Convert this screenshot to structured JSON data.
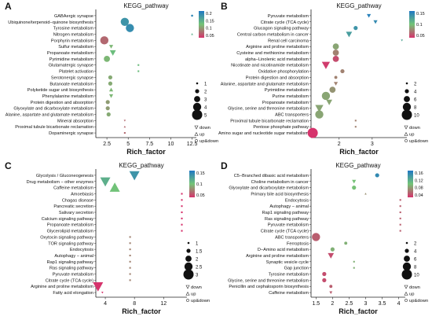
{
  "panel_letters": [
    "A",
    "B",
    "C",
    "D"
  ],
  "legend_text": {
    "down": "down",
    "up": "up",
    "updown": "up&down"
  },
  "colors": {
    "low": "#1f78c4",
    "mid": "#74c476",
    "high": "#d6336c"
  },
  "chart_data": [
    {
      "type": "scatter",
      "panel": "A",
      "title": "KEGG_pathway",
      "xlabel": "Rich_factor",
      "ylabel": "",
      "xlim": [
        1.2,
        13.0
      ],
      "xticks": [
        2.5,
        5.0,
        7.5,
        10.0,
        12.5
      ],
      "colorbar": {
        "ticks": [
          0.2,
          0.15,
          0.1,
          0.05
        ]
      },
      "size_legend": [
        1,
        2,
        3,
        4,
        5
      ],
      "categories": [
        "GABAergic synapse",
        "Ubiquinone/terpenoid−quinone biosynthesis",
        "Tyrosine metabolism",
        "Nitrogen metabolism",
        "Porphyrin metabolism",
        "Sulfur metabolism",
        "Propanoate metabolism",
        "Pyrimidine metabolism",
        "Glutamatergic synapse",
        "Platelet activation",
        "Serotonergic synapse",
        "Butanoate metabolism",
        "Polyketide sugar unit biosynthesis",
        "Phenylalanine metabolism",
        "Protein digestion and absorption",
        "Glyoxylate and dicarboxylate metabolism",
        "Alanine, aspartate and glutamate metabolism",
        "Mineral absorption",
        "Proximal tubule bicarbonate reclamation",
        "Dopaminergic synapse"
      ],
      "points": [
        {
          "x": 12.5,
          "size": 1,
          "q": 0.02,
          "shape": "circle"
        },
        {
          "x": 4.6,
          "size": 4,
          "q": 0.04,
          "shape": "circle"
        },
        {
          "x": 5.2,
          "size": 4,
          "q": 0.03,
          "shape": "circle"
        },
        {
          "x": 12.5,
          "size": 1,
          "q": 0.08,
          "shape": "up"
        },
        {
          "x": 2.2,
          "size": 4,
          "q": 0.18,
          "shape": "circle"
        },
        {
          "x": 3.0,
          "size": 2,
          "q": 0.12,
          "shape": "down"
        },
        {
          "x": 3.2,
          "size": 3,
          "q": 0.1,
          "shape": "down"
        },
        {
          "x": 2.5,
          "size": 3,
          "q": 0.12,
          "shape": "circle"
        },
        {
          "x": 6.2,
          "size": 1,
          "q": 0.1,
          "shape": "updown"
        },
        {
          "x": 6.2,
          "size": 1,
          "q": 0.1,
          "shape": "updown"
        },
        {
          "x": 2.9,
          "size": 2,
          "q": 0.13,
          "shape": "circle"
        },
        {
          "x": 2.9,
          "size": 2,
          "q": 0.13,
          "shape": "circle"
        },
        {
          "x": 3.0,
          "size": 2,
          "q": 0.12,
          "shape": "up"
        },
        {
          "x": 3.0,
          "size": 2,
          "q": 0.12,
          "shape": "down"
        },
        {
          "x": 2.6,
          "size": 2,
          "q": 0.14,
          "shape": "circle"
        },
        {
          "x": 2.6,
          "size": 2,
          "q": 0.14,
          "shape": "circle"
        },
        {
          "x": 2.7,
          "size": 2,
          "q": 0.13,
          "shape": "circle"
        },
        {
          "x": 4.6,
          "size": 1,
          "q": 0.18,
          "shape": "down"
        },
        {
          "x": 4.6,
          "size": 1,
          "q": 0.18,
          "shape": "up"
        },
        {
          "x": 4.6,
          "size": 1,
          "q": 0.18,
          "shape": "updown"
        }
      ]
    },
    {
      "type": "scatter",
      "panel": "B",
      "title": "KEGG_pathway",
      "xlabel": "Rich_factor",
      "ylabel": "",
      "xlim": [
        1.15,
        4.05
      ],
      "xticks": [
        2,
        3
      ],
      "colorbar": {
        "ticks": [
          0.15,
          0.1,
          0.05
        ]
      },
      "size_legend": [
        2,
        4,
        6,
        8,
        10
      ],
      "categories": [
        "Pyruvate metabolism",
        "Citrate cycle (TCA cycle)",
        "Glucagon signaling pathway",
        "Central carbon metabolism in cancer",
        "Renal cell carcinoma",
        "Arginine and proline metabolism",
        "Cysteine and methionine metabolism",
        "alpha−Linolenic acid metabolism",
        "Nicotinate and nicotinamide metabolism",
        "Oxidative phosphorylation",
        "Protein digestion and absorption",
        "Alanine, aspartate and glutamate metabolism",
        "Pyrimidine metabolism",
        "Purine metabolism",
        "Propanoate metabolism",
        "Glycine, serine and threonine metabolism",
        "ABC transporters",
        "Proximal tubule bicarbonate reclamation",
        "Pentose phosphate pathway",
        "Amino sugar and nucleotide sugar metabolism"
      ],
      "points": [
        {
          "x": 2.9,
          "size": 4,
          "q": 0.01,
          "shape": "down"
        },
        {
          "x": 3.1,
          "size": 4,
          "q": 0.02,
          "shape": "down"
        },
        {
          "x": 2.5,
          "size": 4,
          "q": 0.03,
          "shape": "circle"
        },
        {
          "x": 2.3,
          "size": 6,
          "q": 0.04,
          "shape": "down"
        },
        {
          "x": 3.9,
          "size": 2,
          "q": 0.05,
          "shape": "down"
        },
        {
          "x": 1.9,
          "size": 6,
          "q": 0.1,
          "shape": "circle"
        },
        {
          "x": 1.9,
          "size": 6,
          "q": 0.12,
          "shape": "circle"
        },
        {
          "x": 1.9,
          "size": 6,
          "q": 0.15,
          "shape": "circle"
        },
        {
          "x": 1.6,
          "size": 8,
          "q": 0.16,
          "shape": "down"
        },
        {
          "x": 2.1,
          "size": 4,
          "q": 0.12,
          "shape": "circle"
        },
        {
          "x": 1.9,
          "size": 3,
          "q": 0.12,
          "shape": "circle"
        },
        {
          "x": 1.9,
          "size": 4,
          "q": 0.12,
          "shape": "down"
        },
        {
          "x": 1.8,
          "size": 6,
          "q": 0.11,
          "shape": "circle"
        },
        {
          "x": 1.6,
          "size": 8,
          "q": 0.1,
          "shape": "circle"
        },
        {
          "x": 1.7,
          "size": 6,
          "q": 0.1,
          "shape": "down"
        },
        {
          "x": 1.4,
          "size": 8,
          "q": 0.1,
          "shape": "down"
        },
        {
          "x": 1.4,
          "size": 8,
          "q": 0.1,
          "shape": "circle"
        },
        {
          "x": 2.5,
          "size": 2,
          "q": 0.12,
          "shape": "updown"
        },
        {
          "x": 2.5,
          "size": 2,
          "q": 0.12,
          "shape": "updown"
        },
        {
          "x": 1.2,
          "size": 10,
          "q": 0.17,
          "shape": "circle"
        }
      ]
    },
    {
      "type": "scatter",
      "panel": "C",
      "title": "KEGG_pathway",
      "xlabel": "Rich_factor",
      "ylabel": "",
      "xlim": [
        2.7,
        15.2
      ],
      "xticks": [
        4,
        8,
        12
      ],
      "colorbar": {
        "ticks": [
          0.15,
          0.1,
          0.05
        ]
      },
      "size_legend": [
        1,
        1.5,
        2,
        2.5,
        3
      ],
      "categories": [
        "Glycolysis / Gluconeogenesis",
        "Drug metabolism − other enzymes",
        "Caffeine metabolism",
        "Amoebiasis",
        "Chagas disease",
        "Pancreatic secretion",
        "Salivary secretion",
        "Calcium signaling pathway",
        "Propanoate metabolism",
        "Glycerolipid metabolism",
        "Oxytocin signaling pathway",
        "TOR signaling pathway",
        "Endocytosis",
        "Autophagy − animal",
        "Rap1 signaling pathway",
        "Ras signaling pathway",
        "Pyruvate metabolism",
        "Citrate cycle (TCA cycle)",
        "Arginine and proline metabolism",
        "Fatty acid elongation"
      ],
      "points": [
        {
          "x": 8.0,
          "size": 3,
          "q": 0.03,
          "shape": "down"
        },
        {
          "x": 4.0,
          "size": 3,
          "q": 0.06,
          "shape": "down"
        },
        {
          "x": 5.3,
          "size": 3,
          "q": 0.08,
          "shape": "up"
        },
        {
          "x": 14.5,
          "size": 1,
          "q": 0.18,
          "shape": "updown"
        },
        {
          "x": 14.5,
          "size": 1,
          "q": 0.18,
          "shape": "updown"
        },
        {
          "x": 14.5,
          "size": 1,
          "q": 0.18,
          "shape": "updown"
        },
        {
          "x": 14.5,
          "size": 1,
          "q": 0.18,
          "shape": "updown"
        },
        {
          "x": 14.5,
          "size": 1,
          "q": 0.18,
          "shape": "updown"
        },
        {
          "x": 14.5,
          "size": 1,
          "q": 0.18,
          "shape": "updown"
        },
        {
          "x": 14.5,
          "size": 1,
          "q": 0.18,
          "shape": "updown"
        },
        {
          "x": 7.4,
          "size": 1,
          "q": 0.12,
          "shape": "updown"
        },
        {
          "x": 7.4,
          "size": 1,
          "q": 0.12,
          "shape": "updown"
        },
        {
          "x": 7.4,
          "size": 1,
          "q": 0.12,
          "shape": "updown"
        },
        {
          "x": 7.4,
          "size": 1,
          "q": 0.12,
          "shape": "updown"
        },
        {
          "x": 7.4,
          "size": 1,
          "q": 0.12,
          "shape": "updown"
        },
        {
          "x": 7.4,
          "size": 1,
          "q": 0.12,
          "shape": "updown"
        },
        {
          "x": 7.4,
          "size": 1,
          "q": 0.12,
          "shape": "updown"
        },
        {
          "x": 7.4,
          "size": 1,
          "q": 0.12,
          "shape": "updown"
        },
        {
          "x": 3.0,
          "size": 3,
          "q": 0.18,
          "shape": "down"
        },
        {
          "x": 3.6,
          "size": 1,
          "q": 0.18,
          "shape": "down"
        }
      ]
    },
    {
      "type": "scatter",
      "panel": "D",
      "title": "KEGG_pathway",
      "xlabel": "Rich_factor",
      "ylabel": "",
      "xlim": [
        1.35,
        4.2
      ],
      "xticks": [
        1.5,
        2,
        2.5,
        3,
        3.5,
        4
      ],
      "colorbar": {
        "ticks": [
          0.16,
          0.12,
          0.08,
          0.04
        ]
      },
      "size_legend": [
        2,
        4,
        6,
        8,
        10
      ],
      "categories": [
        "C5−Branched dibasic acid metabolism",
        "Choline metabolism in cancer",
        "Glyoxylate and dicarboxylate metabolism",
        "Primary bile acid biosynthesis",
        "Endocytosis",
        "Autophagy − animal",
        "Rap1 signaling pathway",
        "Ras signaling pathway",
        "Pyruvate metabolism",
        "Citrate cycle (TCA cycle)",
        "ABC transporters",
        "Ferroptosis",
        "D−Amino acid metabolism",
        "Arginine and proline metabolism",
        "Synaptic vesicle cycle",
        "Gap junction",
        "Tyrosine metabolism",
        "Glycine, serine and threonine metabolism",
        "Penicillin and cephalosporin biosynthesis",
        "Caffeine metabolism"
      ],
      "points": [
        {
          "x": 3.35,
          "size": 4,
          "q": 0.02,
          "shape": "circle"
        },
        {
          "x": 2.65,
          "size": 4,
          "q": 0.09,
          "shape": "down"
        },
        {
          "x": 2.65,
          "size": 4,
          "q": 0.09,
          "shape": "circle"
        },
        {
          "x": 3.0,
          "size": 2,
          "q": 0.12,
          "shape": "up"
        },
        {
          "x": 4.05,
          "size": 1,
          "q": 0.15,
          "shape": "updown"
        },
        {
          "x": 4.05,
          "size": 1,
          "q": 0.15,
          "shape": "updown"
        },
        {
          "x": 4.05,
          "size": 1,
          "q": 0.15,
          "shape": "updown"
        },
        {
          "x": 4.05,
          "size": 1,
          "q": 0.15,
          "shape": "updown"
        },
        {
          "x": 4.05,
          "size": 1,
          "q": 0.15,
          "shape": "updown"
        },
        {
          "x": 4.05,
          "size": 1,
          "q": 0.15,
          "shape": "updown"
        },
        {
          "x": 1.5,
          "size": 8,
          "q": 0.15,
          "shape": "circle"
        },
        {
          "x": 2.4,
          "size": 3,
          "q": 0.1,
          "shape": "circle"
        },
        {
          "x": 2.0,
          "size": 4,
          "q": 0.1,
          "shape": "circle"
        },
        {
          "x": 1.95,
          "size": 6,
          "q": 0.16,
          "shape": "down"
        },
        {
          "x": 2.65,
          "size": 2,
          "q": 0.1,
          "shape": "updown"
        },
        {
          "x": 2.65,
          "size": 2,
          "q": 0.1,
          "shape": "updown"
        },
        {
          "x": 1.75,
          "size": 4,
          "q": 0.16,
          "shape": "circle"
        },
        {
          "x": 1.75,
          "size": 4,
          "q": 0.16,
          "shape": "circle"
        },
        {
          "x": 1.95,
          "size": 3,
          "q": 0.15,
          "shape": "circle"
        },
        {
          "x": 1.95,
          "size": 3,
          "q": 0.15,
          "shape": "down"
        }
      ]
    }
  ]
}
